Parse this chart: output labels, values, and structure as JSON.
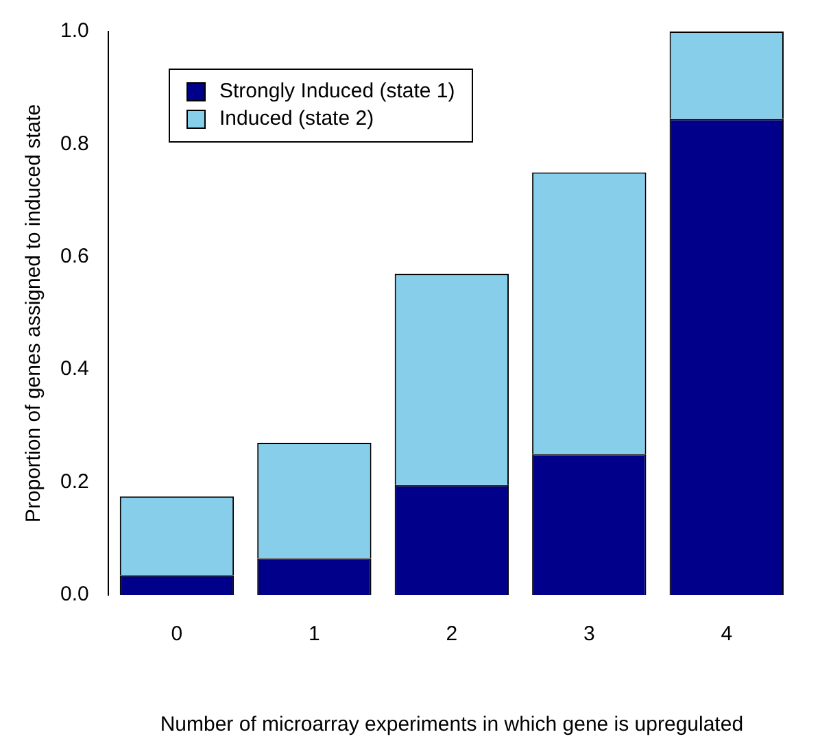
{
  "chart_data": {
    "type": "bar",
    "stacked": true,
    "xlabel": "Number of microarray experiments in which gene is upregulated",
    "ylabel": "Proportion of genes assigned to induced state",
    "categories": [
      "0",
      "1",
      "2",
      "3",
      "4"
    ],
    "series": [
      {
        "name": "Strongly Induced (state 1)",
        "color": "#00008b",
        "values": [
          0.035,
          0.065,
          0.195,
          0.25,
          0.845
        ]
      },
      {
        "name": "Induced (state 2)",
        "color": "#87ceeb",
        "values": [
          0.14,
          0.205,
          0.375,
          0.5,
          0.155
        ]
      }
    ],
    "ylim": [
      0,
      1
    ],
    "yticks": [
      {
        "value": 0,
        "label": "0.0"
      },
      {
        "value": 0.2,
        "label": "0.2"
      },
      {
        "value": 0.4,
        "label": "0.4"
      },
      {
        "value": 0.6,
        "label": "0.6"
      },
      {
        "value": 0.8,
        "label": "0.8"
      },
      {
        "value": 1,
        "label": "1.0"
      }
    ],
    "grid": false,
    "legend": "top left"
  }
}
